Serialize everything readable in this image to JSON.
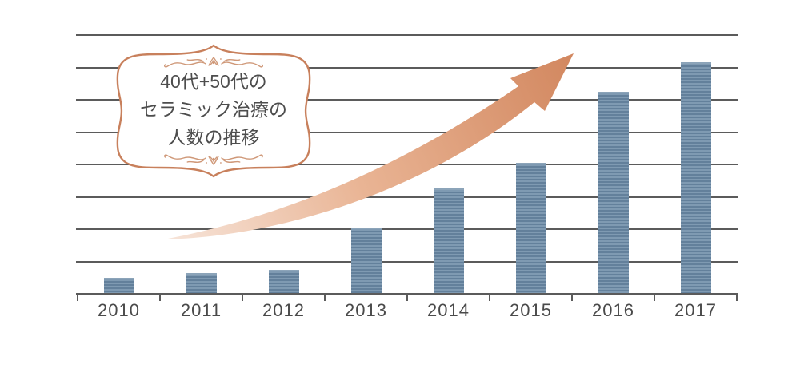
{
  "chart_data": {
    "type": "bar",
    "title": "40代+50代のセラミック治療の人数の推移",
    "categories": [
      "2010",
      "2011",
      "2012",
      "2013",
      "2014",
      "2015",
      "2016",
      "2017"
    ],
    "values": [
      0.5,
      0.65,
      0.75,
      2.05,
      3.25,
      4.05,
      6.25,
      7.15
    ],
    "xlabel": "",
    "ylabel": "",
    "ylim": [
      0,
      8
    ],
    "grid": "horizontal gridlines, no numeric y-axis labels",
    "legend": "none",
    "annotation": "curved upward trend arrow from 2010 toward 2016"
  },
  "badge": {
    "lines": [
      "40代+50代の",
      "セラミック治療の",
      "人数の推移"
    ]
  },
  "colors": {
    "background": "#ffffff",
    "gridline": "#5b5b5b",
    "bar_stripe_light": "#7f9ab2",
    "bar_stripe_dark": "#63809b",
    "bar_top_cap": "#8ca4b9",
    "label_text": "#4a4a4a",
    "title_text": "#4d4d4d",
    "frame_stroke": "#c8805c",
    "ornament": "#cf9878",
    "arrow_tail": "#f7e5da",
    "arrow_mid": "#e9b494",
    "arrow_head": "#d2875f"
  }
}
